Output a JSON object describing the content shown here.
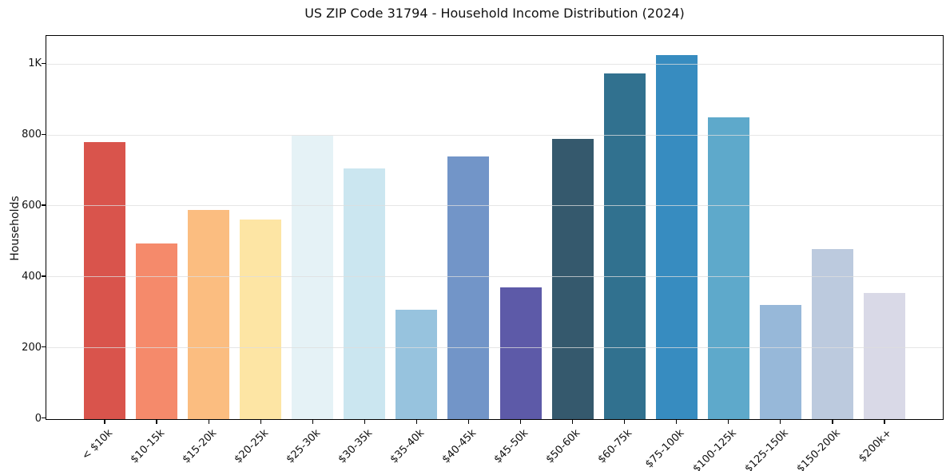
{
  "chart_data": {
    "type": "bar",
    "title": "US ZIP Code 31794 - Household Income Distribution (2024)",
    "xlabel": "",
    "ylabel": "Households",
    "categories": [
      "< $10k",
      "$10-15k",
      "$15-20k",
      "$20-25k",
      "$25-30k",
      "$30-35k",
      "$35-40k",
      "$40-45k",
      "$45-50k",
      "$50-60k",
      "$60-75k",
      "$75-100k",
      "$100-125k",
      "$125-150k",
      "$150-200k",
      "$200k+"
    ],
    "values": [
      781,
      495,
      590,
      563,
      799,
      706,
      309,
      740,
      371,
      790,
      975,
      1027,
      850,
      322,
      480,
      355
    ],
    "bar_colors": [
      "#d9544c",
      "#f58a6b",
      "#fbbd80",
      "#fde5a4",
      "#e5f2f6",
      "#cbe6f0",
      "#97c3de",
      "#7295c8",
      "#5d5aa8",
      "#35596d",
      "#31718f",
      "#378cc0",
      "#5ea9cb",
      "#97b8d9",
      "#bccade",
      "#d9d9e7"
    ],
    "yticks": [
      {
        "value": 0,
        "label": "0"
      },
      {
        "value": 200,
        "label": "200"
      },
      {
        "value": 400,
        "label": "400"
      },
      {
        "value": 600,
        "label": "600"
      },
      {
        "value": 800,
        "label": "800"
      },
      {
        "value": 1000,
        "label": "1K"
      }
    ],
    "ylim": [
      0,
      1078
    ],
    "grid": "horizontal",
    "legend": "none",
    "background_color": "#ffffff",
    "axis_color": "#000000",
    "grid_color": "#dedede",
    "xtick_rotation_deg": 45
  }
}
